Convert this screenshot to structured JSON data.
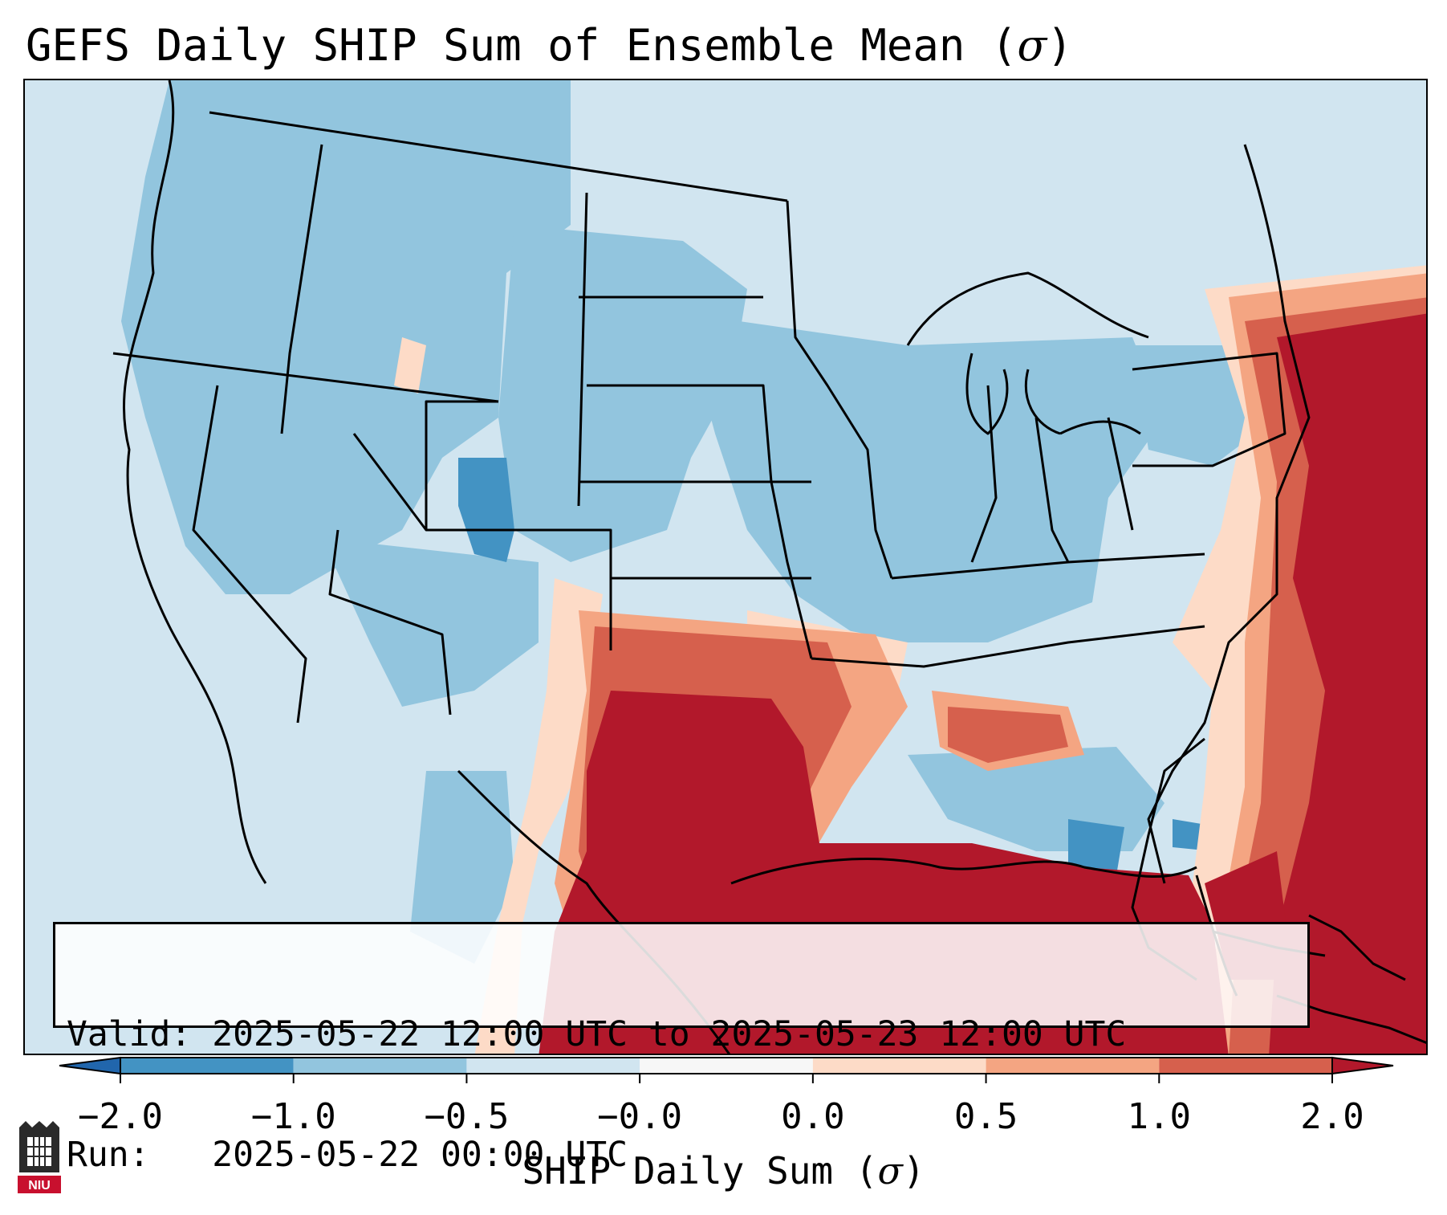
{
  "title": "GEFS Daily SHIP Sum of Ensemble Mean (",
  "title_symbol": "σ",
  "title_close": ")",
  "info": {
    "valid_label": "Valid:",
    "valid_value": "2025-05-22 12:00 UTC to 2025-05-23 12:00 UTC",
    "run_label": "Run:",
    "run_value": "2025-05-22 00:00 UTC"
  },
  "colorbar": {
    "ticks": [
      "−2.0",
      "−1.0",
      "−0.5",
      "−0.0",
      "0.0",
      "0.5",
      "1.0",
      "2.0"
    ],
    "colors": [
      "#4393c3",
      "#92c5de",
      "#d1e5f0",
      "#f7f7f7",
      "#fddbc7",
      "#f4a582",
      "#d6604d"
    ],
    "extend_low_color": "#2166ac",
    "extend_high_color": "#b2182b",
    "label": "SHIP Daily Sum (",
    "label_symbol": "σ",
    "label_close": ")"
  },
  "map": {
    "region": "Continental United States",
    "background_color": "#d1e5f0",
    "high_anomaly_color": "#b2182b",
    "low_anomaly_color": "#4393c3"
  },
  "logo": {
    "text": "NIU",
    "color": "#c8102e"
  }
}
